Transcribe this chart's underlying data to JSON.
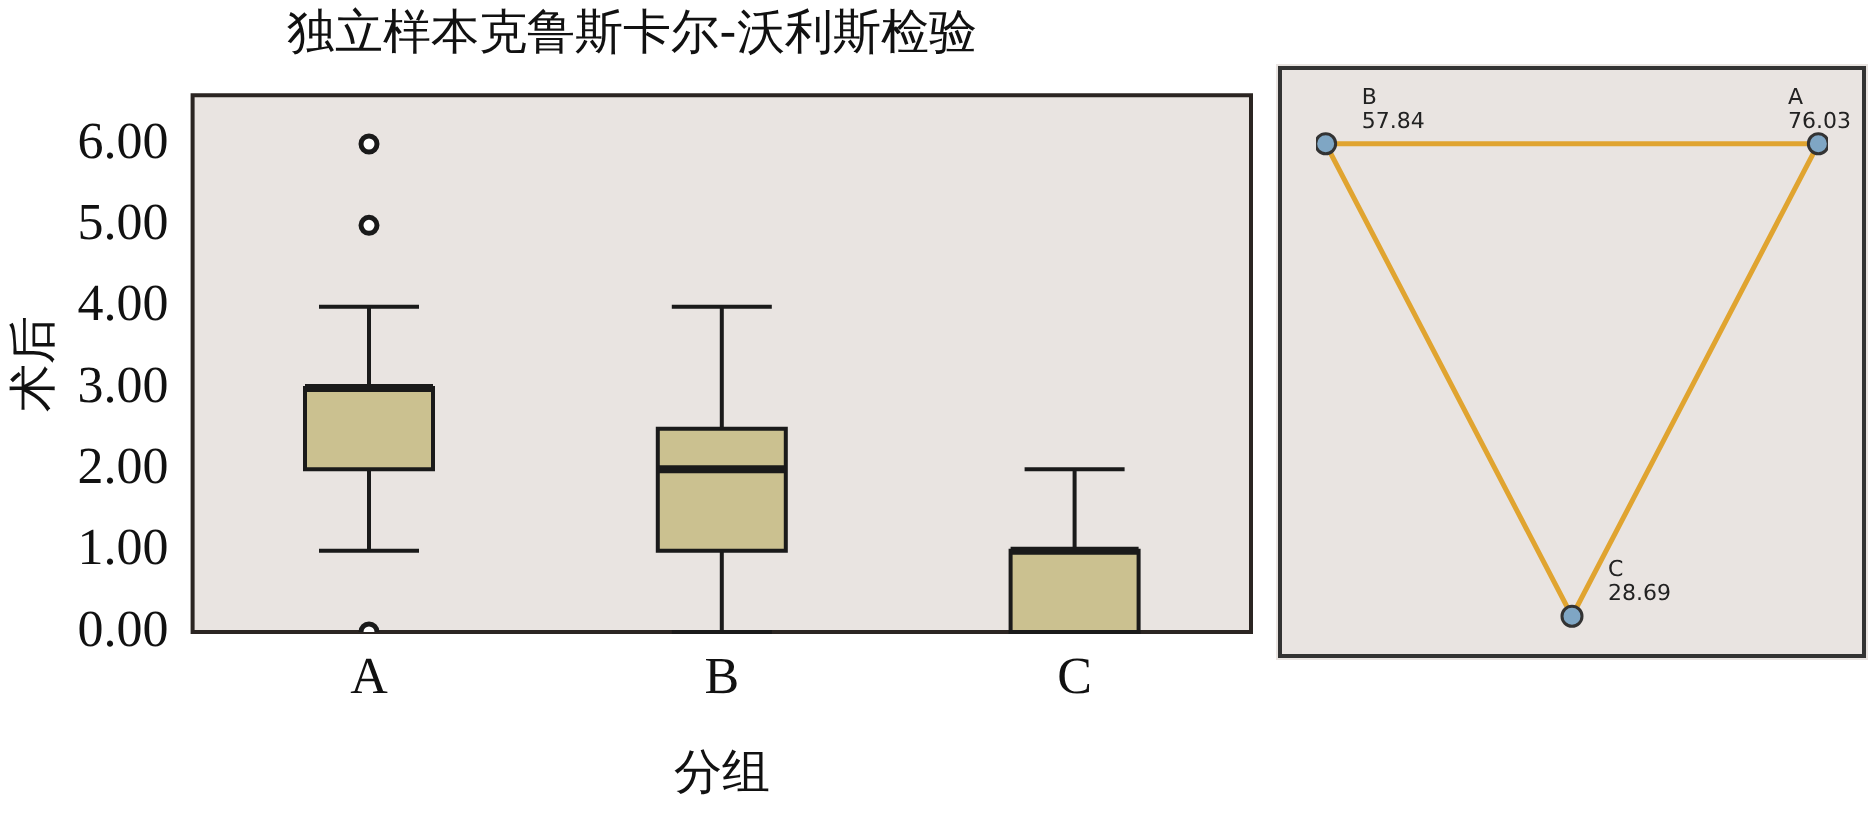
{
  "chart_data": [
    {
      "type": "box",
      "title": "独立样本克鲁斯卡尔-沃利斯检验",
      "xlabel": "分组",
      "ylabel": "术后",
      "categories": [
        "A",
        "B",
        "C"
      ],
      "series": [
        {
          "color": "#cbc190",
          "boxes": [
            {
              "low": 1,
              "q1": 2,
              "median": 3,
              "q3": 3,
              "high": 4,
              "outliers": [
                6,
                5,
                0
              ]
            },
            {
              "low": 0,
              "q1": 1,
              "median": 2,
              "q3": 2.5,
              "high": 4
            },
            {
              "low": 0,
              "q1": 0,
              "median": 1,
              "q3": 1,
              "high": 2
            }
          ]
        }
      ],
      "ylim": [
        0,
        6.6
      ],
      "yticks": [
        {
          "value": 0,
          "label": "0.00"
        },
        {
          "value": 1,
          "label": "1.00"
        },
        {
          "value": 2,
          "label": "2.00"
        },
        {
          "value": 3,
          "label": "3.00"
        },
        {
          "value": 4,
          "label": "4.00"
        },
        {
          "value": 5,
          "label": "5.00"
        },
        {
          "value": 6,
          "label": "6.00"
        }
      ],
      "grid": false,
      "legend": false
    },
    {
      "type": "other",
      "categories": [
        "A",
        "B",
        "C"
      ],
      "values": [
        76.03,
        57.84,
        28.69
      ],
      "data_labels": true
    }
  ]
}
